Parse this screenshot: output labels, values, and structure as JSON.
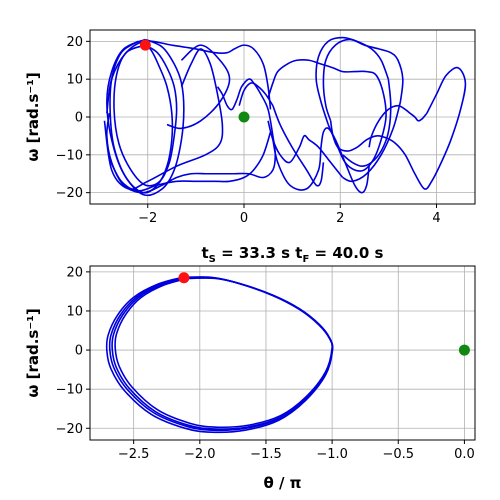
{
  "chart_data": [
    {
      "type": "line",
      "title": "",
      "xlabel": "",
      "ylabel": "ω [rad.s⁻¹]",
      "xlim": [
        -3.2,
        4.8
      ],
      "ylim": [
        -23,
        23
      ],
      "xticks": [
        -2,
        0,
        2,
        4
      ],
      "xtick_labels": [
        "−2",
        "0",
        "2",
        "4"
      ],
      "yticks": [
        -20,
        -10,
        0,
        10,
        20
      ],
      "ytick_labels": [
        "−20",
        "−10",
        "0",
        "10",
        "20"
      ],
      "grid": true,
      "series_color": "#0000dd",
      "trajectories": [
        {
          "x": [
            -2.05,
            -2.5,
            -2.75,
            -2.85,
            -2.75,
            -2.5,
            -2.1,
            -1.7,
            -1.45,
            -1.3,
            -1.25,
            -1.3,
            -1.45,
            -1.7,
            -2.05
          ],
          "y": [
            20.5,
            18,
            12,
            4,
            -6,
            -15,
            -20.5,
            -19,
            -14,
            -6,
            2,
            9,
            14,
            18.5,
            20.5
          ]
        },
        {
          "x": [
            -2.05,
            -2.45,
            -2.65,
            -2.7,
            -2.6,
            -2.35,
            -2.05,
            -1.75,
            -1.55,
            -1.45,
            -1.4,
            -1.45,
            -1.6,
            -1.8,
            -2.05
          ],
          "y": [
            19,
            17,
            11,
            2,
            -7,
            -14,
            -18,
            -17,
            -12,
            -5,
            2,
            8,
            13,
            17,
            19
          ]
        },
        {
          "x": [
            -2.2,
            -2.55,
            -2.75,
            -2.78,
            -2.7,
            -2.45,
            -2.1,
            -1.8,
            -1.6,
            -1.5,
            -1.5,
            -1.6,
            -1.75,
            -1.95,
            -2.2
          ],
          "y": [
            20,
            17,
            10,
            1,
            -8,
            -16,
            -20,
            -18,
            -13,
            -6,
            1,
            8,
            13,
            18,
            20
          ]
        },
        {
          "x": [
            -2.9,
            -2.75,
            -2.4,
            -2,
            -1.4,
            -0.8,
            -0.5,
            -0.45,
            -0.55,
            -0.7,
            -0.9,
            -1.1,
            -1.3
          ],
          "y": [
            -1,
            -14,
            -19,
            -17,
            -13,
            -10,
            -7,
            -2,
            6,
            14,
            18,
            14,
            8
          ]
        },
        {
          "x": [
            -1.3,
            -0.9,
            -0.5,
            -0.3,
            -0.5,
            -0.9,
            -1.3,
            -1.6
          ],
          "y": [
            15,
            19,
            15,
            10,
            4,
            -1,
            -3,
            -2
          ]
        },
        {
          "x": [
            -0.55,
            -0.45,
            -0.35,
            -0.25,
            -0.15,
            -0.05,
            0.1,
            0.2,
            0.35,
            0.5,
            0.6,
            0.65,
            0.6,
            0.4,
            0.1,
            -0.2,
            -0.5,
            -0.8,
            -1.1,
            -1.4,
            -1.7,
            -2.1,
            -2.5,
            -2.75,
            -2.85,
            -2.8
          ],
          "y": [
            8,
            6,
            3,
            2,
            4.5,
            8,
            10,
            9,
            6,
            2,
            -5,
            -10,
            -14,
            -16,
            -15,
            -15,
            -15,
            -15,
            -15,
            -16,
            -18,
            -20,
            -18,
            -12,
            -5,
            1
          ]
        },
        {
          "x": [
            -2.85,
            -2.75,
            -2.45,
            -2.05,
            -1.5,
            -1,
            -0.6,
            -0.35,
            -0.2,
            0,
            0.2,
            0.4,
            0.5,
            0.55
          ],
          "y": [
            1,
            10,
            17,
            20,
            19,
            18,
            17,
            17,
            18,
            19,
            18,
            14,
            8,
            2
          ]
        },
        {
          "x": [
            0.55,
            0.4,
            0.2,
            0,
            -0.3,
            -0.6,
            -1,
            -1.4,
            -1.8,
            -2.2,
            -2.55,
            -2.8
          ],
          "y": [
            -4,
            -10,
            -14,
            -16,
            -17,
            -17,
            -17,
            -17,
            -18,
            -19.5,
            -17,
            -11
          ]
        },
        {
          "x": [
            0.6,
            0.7,
            0.95,
            1.3,
            1.55,
            1.6,
            1.65,
            1.75,
            1.9,
            2.1,
            2.3,
            2.45,
            2.55,
            2.6
          ],
          "y": [
            -6,
            -12,
            -18,
            -19,
            -14,
            -8,
            -4,
            -3,
            -6,
            -12,
            -18,
            -20,
            -18,
            -13
          ]
        },
        {
          "x": [
            2.6,
            2.65,
            2.8,
            3,
            3.2,
            3.35,
            3.45,
            3.55,
            3.62,
            3.7,
            3.8
          ],
          "y": [
            -8,
            -5,
            -1,
            2,
            3,
            2,
            1,
            0,
            -1,
            -0.5,
            1
          ]
        },
        {
          "x": [
            3.8,
            4,
            4.2,
            4.45,
            4.6,
            4.5,
            4.3,
            4.1,
            3.9,
            3.75,
            3.55,
            3.35,
            3.15,
            2.95,
            2.75,
            2.55,
            2.35,
            2.15,
            1.95,
            1.85,
            1.8
          ],
          "y": [
            1,
            6,
            11,
            13,
            9,
            2,
            -6,
            -12,
            -17,
            -19,
            -15,
            -10,
            -7,
            -5.5,
            -5,
            -6,
            -8,
            -9,
            -8,
            -5,
            -1
          ]
        },
        {
          "x": [
            1.8,
            1.7,
            1.65,
            1.7,
            1.9,
            2.2,
            2.5,
            2.8,
            3.05,
            3.2,
            3.3,
            3.25
          ],
          "y": [
            -1,
            3,
            9,
            15,
            19,
            20.5,
            19,
            18,
            17,
            15,
            10,
            4
          ]
        },
        {
          "x": [
            3.25,
            3.1,
            2.85,
            2.55,
            2.25,
            2.05
          ],
          "y": [
            4,
            -3,
            -10,
            -15,
            -17,
            -16
          ]
        },
        {
          "x": [
            2.05,
            1.8,
            1.55,
            1.35,
            1.25,
            1.15,
            0.95,
            0.75,
            0.6,
            0.5
          ],
          "y": [
            -16,
            -12,
            -8,
            -6,
            -5,
            -8,
            -12,
            -10,
            -6,
            -1
          ]
        },
        {
          "x": [
            0.5,
            0.6,
            0.7,
            0.9,
            1.1,
            1.35,
            1.6,
            1.85,
            2.05,
            2.3,
            2.55,
            2.75,
            2.9,
            2.95,
            2.85,
            2.7,
            2.5,
            2.3,
            2.1,
            1.95,
            1.75
          ],
          "y": [
            5,
            9,
            12,
            14,
            15,
            15,
            14,
            13,
            12,
            12,
            12,
            11,
            6,
            0,
            -6,
            -11,
            -14,
            -14,
            -12,
            -8,
            -2
          ]
        },
        {
          "x": [
            1.75,
            1.6,
            1.5,
            1.55,
            1.75,
            2.05,
            2.35,
            2.65,
            2.85,
            3
          ],
          "y": [
            -2,
            4,
            10,
            16,
            20,
            21,
            20,
            18,
            15,
            10
          ]
        },
        {
          "x": [
            3,
            3.05,
            3,
            2.85,
            2.65,
            2.45,
            2.25,
            2.05
          ],
          "y": [
            10,
            3,
            -4,
            -9,
            -12,
            -13,
            -12,
            -10
          ]
        },
        {
          "x": [
            -0.1,
            0,
            0.15,
            0.3,
            0.45,
            0.6
          ],
          "y": [
            3,
            7,
            9,
            8,
            6,
            3
          ]
        },
        {
          "x": [
            0.6,
            0.75,
            1,
            1.3,
            1.5,
            1.6,
            1.65
          ],
          "y": [
            3,
            -2,
            -8,
            -14,
            -18,
            -17,
            -12
          ]
        }
      ],
      "markers": [
        {
          "name": "start",
          "x": -2.05,
          "y": 19,
          "color": "#ff1111"
        },
        {
          "name": "end",
          "x": 0,
          "y": 0,
          "color": "#118811"
        }
      ]
    },
    {
      "type": "line",
      "title": "tS = 33.3 s   tF = 40.0 s",
      "title_parts": {
        "ts_main": "t",
        "ts_sub": "S",
        "ts_value": " = 33.3 s",
        "tf_main": "t",
        "tf_sub": "F",
        "tf_value": " = 40.0 s"
      },
      "xlabel": "θ / π",
      "ylabel": "ω [rad.s⁻¹]",
      "xlim": [
        -2.83,
        0.08
      ],
      "ylim": [
        -23,
        21.5
      ],
      "xticks": [
        -2.5,
        -2.0,
        -1.5,
        -1.0,
        -0.5,
        0.0
      ],
      "xtick_labels": [
        "−2.5",
        "−2.0",
        "−1.5",
        "−1.0",
        "−0.5",
        "0.0"
      ],
      "yticks": [
        -20,
        -10,
        0,
        10,
        20
      ],
      "ytick_labels": [
        "−20",
        "−10",
        "0",
        "10",
        "20"
      ],
      "grid": true,
      "series_color": "#0000dd",
      "loop_template": {
        "x": [
          -2.12,
          -2.3,
          -2.48,
          -2.6,
          -2.67,
          -2.68,
          -2.65,
          -2.55,
          -2.35,
          -2.1,
          -1.9,
          -1.65,
          -1.4,
          -1.2,
          -1.05,
          -1.0,
          -1.02,
          -1.1,
          -1.25,
          -1.45,
          -1.7,
          -1.9,
          -2.12
        ],
        "y": [
          18.5,
          16.8,
          13.5,
          9,
          4,
          0,
          -4.5,
          -10,
          -16,
          -19.5,
          -20.5,
          -20,
          -17.5,
          -12.5,
          -6,
          0,
          3,
          6.5,
          10.5,
          14,
          17,
          18.5,
          18.5
        ]
      },
      "loop_offsets": [
        {
          "dx": 0.0,
          "dy": 0.0,
          "s": 1.0
        },
        {
          "dx": 0.02,
          "dy": 0.3,
          "s": 0.975
        },
        {
          "dx": -0.01,
          "dy": -0.2,
          "s": 1.015
        },
        {
          "dx": 0.01,
          "dy": 0.1,
          "s": 0.99
        }
      ],
      "markers": [
        {
          "name": "start",
          "x": -2.12,
          "y": 18.5,
          "color": "#ff1111"
        },
        {
          "name": "end",
          "x": 0.0,
          "y": 0.0,
          "color": "#118811"
        }
      ]
    }
  ]
}
